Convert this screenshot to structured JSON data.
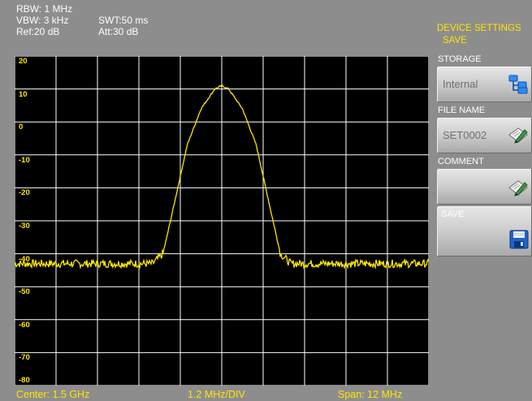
{
  "header": {
    "rbw": "RBW: 1 MHz",
    "vbw": "VBW: 3 kHz",
    "ref": "Ref:20 dB",
    "swt": "SWT:50 ms",
    "att": "Att:30 dB"
  },
  "menu": {
    "title": "DEVICE SETTINGS",
    "subtitle": "SAVE",
    "softkeys": [
      {
        "label": "STORAGE",
        "value": "Internal",
        "icon": "folder-tree-icon"
      },
      {
        "label": "FILE NAME",
        "value": "SET0002",
        "icon": "edit-pen-icon"
      },
      {
        "label": "COMMENT",
        "value": "",
        "icon": "edit-pen-icon"
      },
      {
        "label": "SAVE",
        "value": "",
        "icon": "floppy-disk-icon"
      }
    ]
  },
  "footer": {
    "center": "Center: 1.5 GHz",
    "div": "1.2 MHz/DIV",
    "span": "Span: 12 MHz"
  },
  "colors": {
    "trace": "#ffe600",
    "grid": "#ffffff",
    "plot_bg": "#000000",
    "frame_bg": "#8d8d8d"
  },
  "chart_data": {
    "type": "line",
    "xlabel": "",
    "ylabel": "",
    "y_tick_labels": [
      "20",
      "10",
      "0",
      "-10",
      "-20",
      "-30",
      "-40",
      "-50",
      "-60",
      "-70",
      "-80"
    ],
    "ylim": [
      -80,
      20
    ],
    "xlim": [
      1494,
      1506
    ],
    "x_unit": "MHz",
    "grid": true,
    "series": [
      {
        "x": [
          1494,
          1495,
          1496,
          1497,
          1498,
          1498.3,
          1498.6,
          1499,
          1499.4,
          1499.8,
          1500,
          1500.2,
          1500.6,
          1501,
          1501.4,
          1501.7,
          1502,
          1503,
          1504,
          1505,
          1506
        ],
        "y": [
          -43,
          -43,
          -43,
          -43,
          -43,
          -40,
          -26,
          -7,
          4,
          10,
          11,
          10,
          4,
          -7,
          -26,
          -40,
          -43,
          -43,
          -43,
          -43,
          -43
        ]
      }
    ]
  }
}
